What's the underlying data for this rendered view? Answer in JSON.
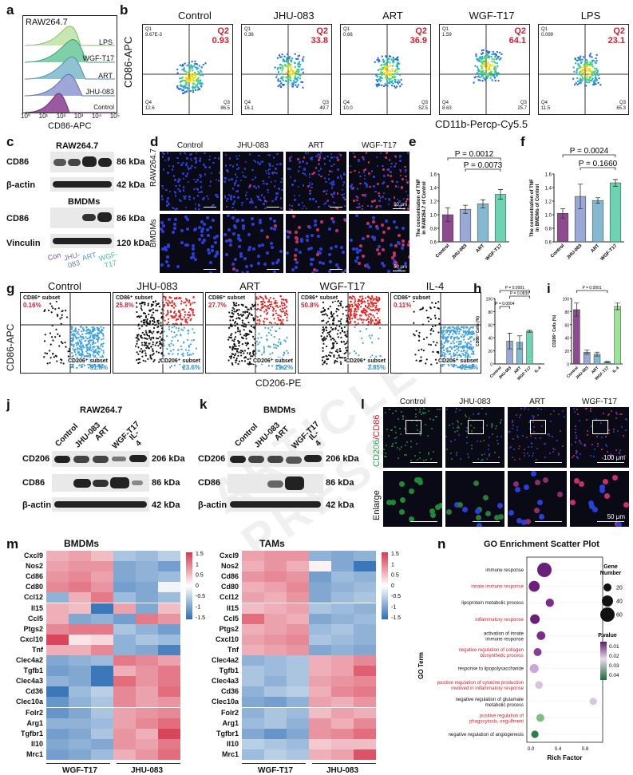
{
  "watermark": "ARTICLE IN PRESS",
  "panel_a": {
    "label": "a",
    "cell": "RAW264.7",
    "tracks": [
      "LPS",
      "WGF-T17",
      "ART",
      "JHU-083",
      "Control"
    ],
    "xlabel": "CD86-APC",
    "ticks": [
      "10⁰",
      "10¹",
      "10²",
      "10³",
      "10⁴",
      "10⁵"
    ]
  },
  "panel_b": {
    "label": "b",
    "ylabel": "CD86-APC",
    "xlabel": "CD11b-Percp-Cy5.5",
    "plots": [
      {
        "title": "Control",
        "q1": "Q1\n9.67E-3",
        "q2_label": "Q2",
        "q2": "0.93",
        "q4": "Q4\n12.6",
        "q3": "Q3\n86.5"
      },
      {
        "title": "JHU-083",
        "q1": "Q1\n0.36",
        "q2_label": "Q2",
        "q2": "33.8",
        "q4": "Q4\n16.1",
        "q3": "Q3\n49.7"
      },
      {
        "title": "ART",
        "q1": "Q1\n0.66",
        "q2_label": "Q2",
        "q2": "36.9",
        "q4": "Q4\n10.0",
        "q3": "Q3\n52.5"
      },
      {
        "title": "WGF-T17",
        "q1": "Q1\n1.59",
        "q2_label": "Q2",
        "q2": "64.1",
        "q4": "Q4\n8.63",
        "q3": "Q3\n25.7"
      },
      {
        "title": "LPS",
        "q1": "Q1\n0.099",
        "q2_label": "Q2",
        "q2": "23.1",
        "q4": "Q4\n11.5",
        "q3": "Q3\n65.3"
      }
    ]
  },
  "panel_c": {
    "label": "c",
    "raw_title": "RAW264.7",
    "bmdm_title": "BMDMs",
    "rows": [
      {
        "name": "CD86",
        "kda": "86 kDa"
      },
      {
        "name": "β-actin",
        "kda": "42 kDa"
      },
      {
        "name": "CD86",
        "kda": "86 kDa"
      },
      {
        "name": "Vinculin",
        "kda": "120 kDa"
      }
    ],
    "lanes": [
      "Con",
      "JHU-\n083",
      "ART",
      "WGF-\nT17"
    ]
  },
  "panel_d": {
    "label": "d",
    "cols": [
      "Control",
      "JHU-083",
      "ART",
      "WGF-T17"
    ],
    "rows": [
      "RAW264.7",
      "BMDMs"
    ],
    "scale": "50 μm"
  },
  "panel_e": {
    "label": "e",
    "p1": "P = 0.0012",
    "p2": "P = 0.0073",
    "ylabel": "The concentration of TNF\nin RAW264.7 of Control",
    "chart_data": {
      "type": "bar",
      "categories": [
        "Control",
        "JHU-083",
        "ART",
        "WGF-T17"
      ],
      "values": [
        1.0,
        1.08,
        1.16,
        1.3
      ],
      "errors": [
        0.1,
        0.06,
        0.06,
        0.07
      ],
      "ylim": [
        0.6,
        1.6
      ],
      "yticks": [
        "0.6",
        "0.8",
        "1.0",
        "1.2",
        "1.4",
        "1.6"
      ],
      "colors": [
        "#8c4b8f",
        "#9aa8d6",
        "#84b9cf",
        "#6dd3b3"
      ]
    }
  },
  "panel_f": {
    "label": "f",
    "p1": "P = 0.0024",
    "p2": "P = 0.1660",
    "ylabel": "The concentration of TNF\nin BMDMs of Control",
    "chart_data": {
      "type": "bar",
      "categories": [
        "Control",
        "JHU-083",
        "ART",
        "WGF-T17"
      ],
      "values": [
        1.02,
        1.27,
        1.21,
        1.47
      ],
      "errors": [
        0.07,
        0.18,
        0.04,
        0.05
      ],
      "ylim": [
        0.6,
        1.6
      ],
      "yticks": [
        "0.6",
        "0.8",
        "1.0",
        "1.2",
        "1.4",
        "1.6"
      ],
      "colors": [
        "#8c4b8f",
        "#9aa8d6",
        "#84b9cf",
        "#6dd3b3"
      ]
    }
  },
  "panel_g": {
    "label": "g",
    "ylabel": "CD86-APC",
    "xlabel": "CD206-PE",
    "plots": [
      {
        "title": "Control",
        "cd86": "CD86⁺ subset",
        "cd86v": "0.16%",
        "cd206": "CD206⁺ subset",
        "cd206v": "91.6%"
      },
      {
        "title": "JHU-083",
        "cd86": "CD86⁺ subset",
        "cd86v": "25.8%",
        "cd206": "CD206⁺ subset",
        "cd206v": "23.6%"
      },
      {
        "title": "ART",
        "cd86": "CD86⁺ subset",
        "cd86v": "27.7%",
        "cd206": "CD206⁺ subset",
        "cd206v": "19.2%"
      },
      {
        "title": "WGF-T17",
        "cd86": "CD86⁺ subset",
        "cd86v": "50.8%",
        "cd206": "CD206⁺ subset",
        "cd206v": "3.85%"
      },
      {
        "title": "IL-4",
        "cd86": "CD86⁺ subset",
        "cd86v": "0.11%",
        "cd206": "CD206⁺ subset",
        "cd206v": "92.6%"
      }
    ]
  },
  "panel_h": {
    "label": "h",
    "p1": "P = 0.0001",
    "p2": "P = 0.0830",
    "p3": "P = 0.0004",
    "ylabel": "CD86⁺ Cells (%)",
    "chart_data": {
      "type": "bar",
      "categories": [
        "Control",
        "JHU-083",
        "ART",
        "WGF-T17",
        "IL-4"
      ],
      "values": [
        0.2,
        35,
        33,
        50,
        0.2
      ],
      "errors": [
        0.1,
        12,
        10,
        1.5,
        0.1
      ],
      "ylim": [
        0,
        100
      ],
      "yticks": [
        "0",
        "20",
        "40",
        "60",
        "80",
        "100"
      ],
      "colors": [
        "#8c4b8f",
        "#9aa8d6",
        "#84b9cf",
        "#6dd3b3",
        "#9ee39a"
      ]
    }
  },
  "panel_i": {
    "label": "i",
    "p1": "P = 0.0001",
    "ylabel": "CD206⁺ Cells (%)",
    "chart_data": {
      "type": "bar",
      "categories": [
        "Control",
        "JHU-083",
        "ART",
        "WGF-T17",
        "IL-4"
      ],
      "values": [
        83,
        18,
        15,
        3,
        88
      ],
      "errors": [
        10,
        3,
        3,
        1,
        5
      ],
      "ylim": [
        0,
        100
      ],
      "yticks": [
        "0",
        "20",
        "40",
        "60",
        "80",
        "100"
      ],
      "colors": [
        "#8c4b8f",
        "#9aa8d6",
        "#84b9cf",
        "#6dd3b3",
        "#9ee39a"
      ]
    }
  },
  "panel_j": {
    "label": "j",
    "title": "RAW264.7",
    "lanes": [
      "Control",
      "JHU-083",
      "ART",
      "WGF-T17",
      "IL-4"
    ],
    "rows": [
      {
        "name": "CD206",
        "kda": "206 kDa"
      },
      {
        "name": "CD86",
        "kda": "86 kDa"
      },
      {
        "name": "β-actin",
        "kda": "42 kDa"
      }
    ]
  },
  "panel_k": {
    "label": "k",
    "title": "BMDMs",
    "lanes": [
      "Control",
      "JHU-083",
      "ART",
      "WGF-T17",
      "IL-4"
    ],
    "rows": [
      {
        "name": "CD206",
        "kda": "206 kDa"
      },
      {
        "name": "CD86",
        "kda": "86 kDa"
      },
      {
        "name": "β-actin",
        "kda": "42 kDa"
      }
    ]
  },
  "panel_l": {
    "label": "l",
    "cols": [
      "Control",
      "JHU-083",
      "ART",
      "WGF-T17"
    ],
    "row1_a": "CD206",
    "row1_b": "/CD86",
    "row2": "Enlarge",
    "scale1": "100 μm",
    "scale2": "50 μm"
  },
  "panel_m": {
    "label": "m",
    "left_title": "BMDMs",
    "right_title": "TAMs",
    "genes": [
      "Cxcl9",
      "Nos2",
      "Cd86",
      "Cd80",
      "Ccl12",
      "Il15",
      "Ccl5",
      "Ptgs2",
      "Cxcl10",
      "Tnf",
      "Clec4a2",
      "Tgfb1",
      "Clec4a3",
      "Cd36",
      "Clec10a",
      "Folr2",
      "Arg1",
      "Tgfbr1",
      "Il10",
      "Mrc1"
    ],
    "groups": [
      "WGF-T17",
      "JHU-083"
    ],
    "colorbar": [
      "1.5",
      "1",
      "0.5",
      "0",
      "-0.5",
      "-1",
      "-1.5"
    ],
    "bmdm_values": [
      [
        0.6,
        0.7,
        0.5,
        -0.6,
        -0.7,
        -0.5
      ],
      [
        0.7,
        0.8,
        0.8,
        -0.9,
        -0.8,
        -1.0
      ],
      [
        0.8,
        0.9,
        0.7,
        -0.9,
        -0.8,
        -0.7
      ],
      [
        0.9,
        1.0,
        0.8,
        -1.0,
        -0.9,
        -0.1
      ],
      [
        -0.8,
        0.6,
        1.0,
        -0.7,
        -0.9,
        -0.7
      ],
      [
        0.6,
        0.5,
        -1.4,
        0.7,
        -0.9,
        0.5
      ],
      [
        0.6,
        -0.9,
        -0.8,
        -1.0,
        1.0,
        0.8
      ],
      [
        0.9,
        1.0,
        1.0,
        -0.6,
        -0.8,
        -1.0
      ],
      [
        1.4,
        0.2,
        0.3,
        -0.8,
        -0.6,
        -0.7
      ],
      [
        0.6,
        0.6,
        0.9,
        -0.8,
        -0.9,
        -1.3
      ],
      [
        -0.9,
        -0.8,
        -0.7,
        1.0,
        0.9,
        0.7
      ],
      [
        -1.0,
        -0.9,
        -1.4,
        0.6,
        0.8,
        1.0
      ],
      [
        -0.8,
        -0.9,
        -1.4,
        1.1,
        0.8,
        1.0
      ],
      [
        -1.4,
        -0.7,
        -0.5,
        0.9,
        0.7,
        1.1
      ],
      [
        -1.1,
        -0.8,
        -0.6,
        0.9,
        0.7,
        0.8
      ],
      [
        -1.1,
        -0.9,
        -0.6,
        0.7,
        0.8,
        0.9
      ],
      [
        -0.8,
        -0.8,
        -0.7,
        0.7,
        0.9,
        1.1
      ],
      [
        -1.0,
        -0.9,
        -0.6,
        0.8,
        0.6,
        1.4
      ],
      [
        -0.9,
        -0.8,
        -0.9,
        0.8,
        0.7,
        1.0
      ],
      [
        -1.0,
        -0.9,
        -0.7,
        0.6,
        0.8,
        1.1
      ]
    ],
    "tam_values": [
      [
        0.7,
        0.8,
        0.8,
        -0.8,
        -0.9,
        -0.8
      ],
      [
        0.6,
        0.8,
        0.6,
        0.1,
        -0.9,
        -1.4
      ],
      [
        0.8,
        0.9,
        0.8,
        -1.0,
        -0.7,
        -0.8
      ],
      [
        0.6,
        0.7,
        0.9,
        -0.9,
        -0.8,
        -0.7
      ],
      [
        0.7,
        0.6,
        0.8,
        -0.9,
        -0.7,
        -0.6
      ],
      [
        0.5,
        0.6,
        0.7,
        -0.6,
        -0.7,
        -0.8
      ],
      [
        1.1,
        0.7,
        0.6,
        -0.9,
        -0.8,
        -0.7
      ],
      [
        0.6,
        0.7,
        0.8,
        -0.7,
        -0.6,
        -0.8
      ],
      [
        0.7,
        0.8,
        0.9,
        -0.6,
        -0.7,
        -0.8
      ],
      [
        0.6,
        0.7,
        0.8,
        -0.9,
        -0.8,
        -0.9
      ],
      [
        -0.8,
        -0.7,
        -0.6,
        0.6,
        0.7,
        0.9
      ],
      [
        -0.6,
        -0.7,
        -0.6,
        0.6,
        0.7,
        1.2
      ],
      [
        -0.6,
        -0.8,
        -0.6,
        0.7,
        0.8,
        0.9
      ],
      [
        -0.8,
        -0.6,
        -0.5,
        0.6,
        0.9,
        1.0
      ],
      [
        -0.9,
        -1.0,
        -0.8,
        0.7,
        0.6,
        0.8
      ],
      [
        -0.8,
        -0.6,
        -0.7,
        0.5,
        0.7,
        0.6
      ],
      [
        -0.7,
        -0.6,
        -0.8,
        0.8,
        0.6,
        0.9
      ],
      [
        -0.9,
        -1.1,
        -0.9,
        0.8,
        0.9,
        1.1
      ],
      [
        -0.5,
        -0.6,
        -0.7,
        0.4,
        0.5,
        0.5
      ],
      [
        -0.7,
        -0.5,
        -0.6,
        0.6,
        0.7,
        1.3
      ]
    ]
  },
  "panel_n": {
    "label": "n",
    "title": "GO Enrichment Scatter Plot",
    "ylabel": "GO Term",
    "xlabel": "Rich Factor",
    "size_legend_title": "Gene\nNumber",
    "size_legend": [
      "20",
      "40",
      "60"
    ],
    "color_legend_title": "P.value",
    "color_legend": [
      "0.01",
      "0.02",
      "0.03",
      "0.04"
    ],
    "chart_data": {
      "type": "scatter",
      "xlim": [
        0,
        1.0
      ],
      "xticks": [
        "0.0",
        "0.4",
        "0.8"
      ],
      "terms": [
        {
          "label": "immune response",
          "x": 0.2,
          "size": 60,
          "color": "#6a1f7a",
          "red": false
        },
        {
          "label": "innate immune response",
          "x": 0.05,
          "size": 38,
          "color": "#6a1f7a",
          "red": true
        },
        {
          "label": "lipoprotein metabolic process",
          "x": 0.28,
          "size": 22,
          "color": "#7b2d8a",
          "red": false
        },
        {
          "label": "inflammatory response",
          "x": 0.06,
          "size": 30,
          "color": "#6a1f7a",
          "red": true
        },
        {
          "label": "activation of innate\nimmune response",
          "x": 0.15,
          "size": 24,
          "color": "#7b2d8a",
          "red": false
        },
        {
          "label": "negative regulation of collagen\nbiosynthetic process",
          "x": 0.1,
          "size": 20,
          "color": "#8a3d94",
          "red": true
        },
        {
          "label": "response to lipopolysaccharide",
          "x": 0.05,
          "size": 26,
          "color": "#c9a7d6",
          "red": false
        },
        {
          "label": "positive regulation of cytokine production\ninvolved in inflammatory response",
          "x": 0.12,
          "size": 18,
          "color": "#d9c2e1",
          "red": true
        },
        {
          "label": "negative regulation of glutamate\nmetabolic process",
          "x": 0.92,
          "size": 16,
          "color": "#d6c6e0",
          "red": false
        },
        {
          "label": "positive regulation of\nphagocytosis, engulfment",
          "x": 0.14,
          "size": 20,
          "color": "#7fbf7f",
          "red": true
        },
        {
          "label": "negative regulation of angiogenesis",
          "x": 0.06,
          "size": 16,
          "color": "#2f7d4a",
          "red": false
        }
      ]
    }
  }
}
